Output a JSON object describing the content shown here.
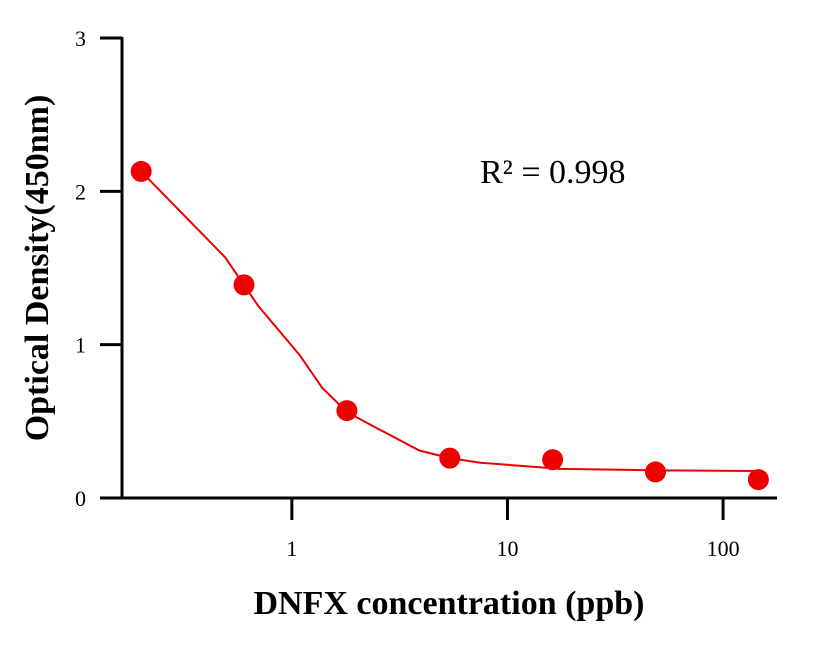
{
  "chart_data": {
    "type": "scatter",
    "title": "",
    "xlabel": "DNFX concentration (ppb)",
    "ylabel": "Optical Density(450nm)",
    "xscale": "log",
    "xlim": [
      0.163,
      176
    ],
    "ylim": [
      0,
      3
    ],
    "xticks": [
      1,
      10,
      100
    ],
    "xtick_labels": [
      "1",
      "10",
      "100"
    ],
    "yticks": [
      0,
      1,
      2,
      3
    ],
    "ytick_labels": [
      "0",
      "1",
      "2",
      "3"
    ],
    "grid": false,
    "annotation": "R² = 0.998",
    "color": "#ee0000",
    "points": {
      "x": [
        0.2,
        0.6,
        1.8,
        5.4,
        16.2,
        48.6,
        145.8
      ],
      "y": [
        2.13,
        1.39,
        0.57,
        0.26,
        0.25,
        0.17,
        0.12
      ]
    },
    "fit_curve": {
      "x": [
        0.2,
        0.49,
        0.7,
        1.09,
        1.38,
        1.8,
        2.3,
        3.9,
        5.4,
        7.5,
        17.5,
        50,
        148
      ],
      "y": [
        2.13,
        1.57,
        1.25,
        0.93,
        0.72,
        0.56,
        0.48,
        0.31,
        0.26,
        0.23,
        0.19,
        0.18,
        0.176
      ]
    }
  }
}
